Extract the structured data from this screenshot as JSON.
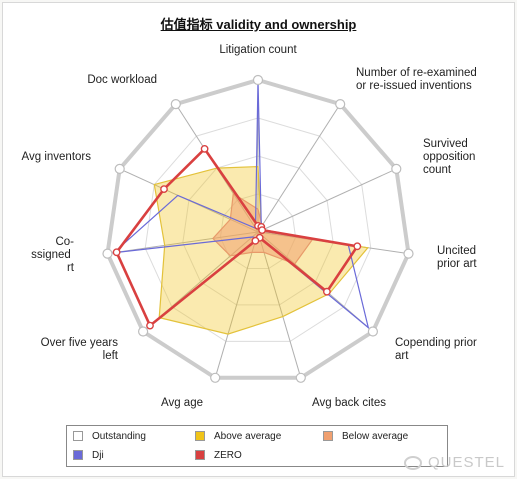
{
  "chart_data": {
    "type": "radar",
    "title": "估值指标 validity and ownership",
    "axes": [
      "Litigation count",
      "Number of re-examined or re-issued inventions",
      "Survived opposition count",
      "Uncited prior art",
      "Copending prior art",
      "Avg back cites",
      "Avg age",
      "Over five years left",
      "Co-assigned art",
      "Avg inventors",
      "Doc workload"
    ],
    "range": [
      0,
      1
    ],
    "series": [
      {
        "name": "Outstanding",
        "color": "#ffffff",
        "values": [
          1,
          1,
          1,
          1,
          1,
          1,
          1,
          1,
          1,
          1,
          1
        ]
      },
      {
        "name": "Above average",
        "color": "#f0c419",
        "values": [
          0.43,
          0.04,
          0.02,
          0.73,
          0.62,
          0.58,
          0.7,
          0.86,
          0.62,
          0.75,
          0.5
        ]
      },
      {
        "name": "Below average",
        "color": "#f0a070",
        "values": [
          0.15,
          0.05,
          0.04,
          0.36,
          0.32,
          0.14,
          0.14,
          0.24,
          0.3,
          0.2,
          0.3
        ]
      },
      {
        "name": "Dji",
        "color": "#6a6ad8",
        "values": [
          1,
          0.04,
          0.02,
          0.6,
          0.96,
          0.04,
          0.04,
          0.05,
          0.96,
          0.58,
          0.03
        ]
      },
      {
        "name": "ZERO",
        "color": "#d94040",
        "values": [
          0.04,
          0.04,
          0.03,
          0.66,
          0.6,
          0.04,
          0.06,
          0.94,
          0.94,
          0.68,
          0.65
        ]
      }
    ],
    "legend_position": "bottom"
  },
  "legend": {
    "items": [
      {
        "label": "Outstanding",
        "color": "#ffffff"
      },
      {
        "label": "Above average",
        "color": "#f0c419"
      },
      {
        "label": "Below average",
        "color": "#f0a070"
      },
      {
        "label": "Dji",
        "color": "#6a6ad8"
      },
      {
        "label": "ZERO",
        "color": "#d94040"
      }
    ]
  },
  "watermark": "QUESTEL"
}
